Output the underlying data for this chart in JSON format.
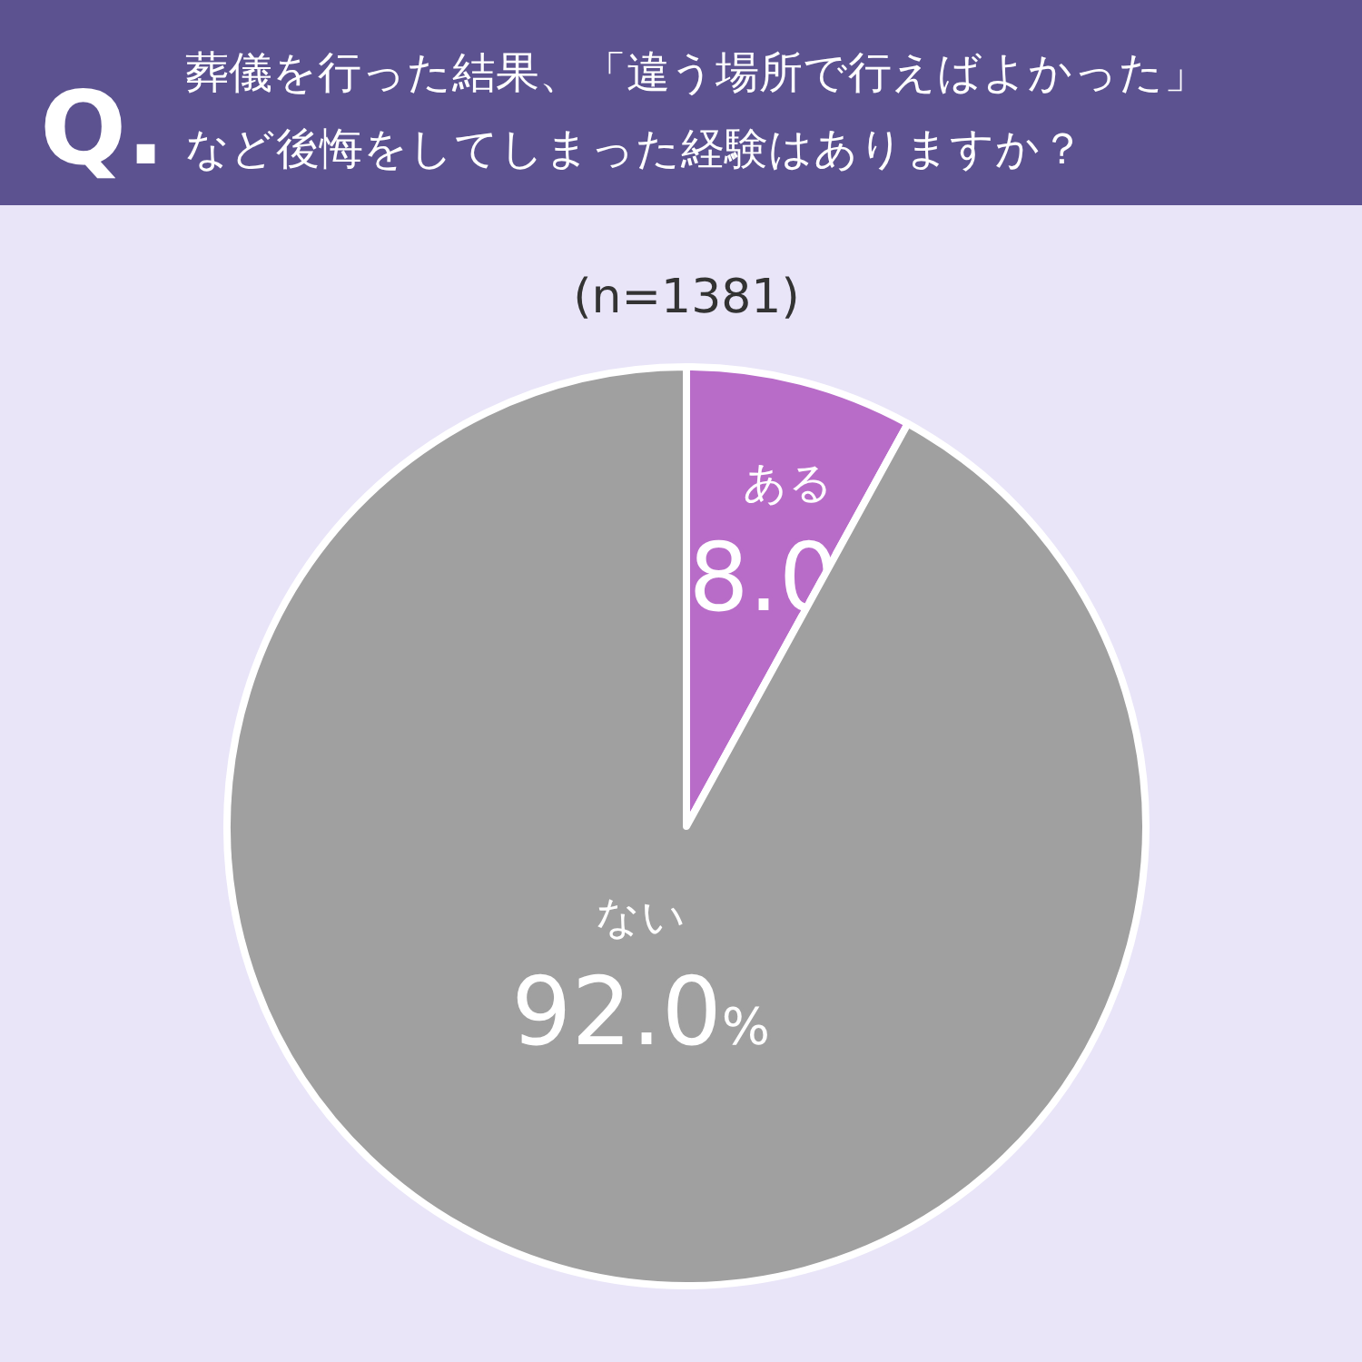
{
  "chart_data": {
    "type": "pie",
    "title": "葬儀を行った結果、「違う場所で行えばよかった」など後悔をしてしまった経験はありますか？",
    "subtitle": "(n=1381)",
    "annotations": [
      "Q."
    ],
    "categories": [
      "ある",
      "ない"
    ],
    "values": [
      8.0,
      92.0
    ],
    "value_labels": [
      "8.0%",
      "92.0%"
    ],
    "colors": [
      "#b86cc8",
      "#a0a0a0"
    ]
  }
}
